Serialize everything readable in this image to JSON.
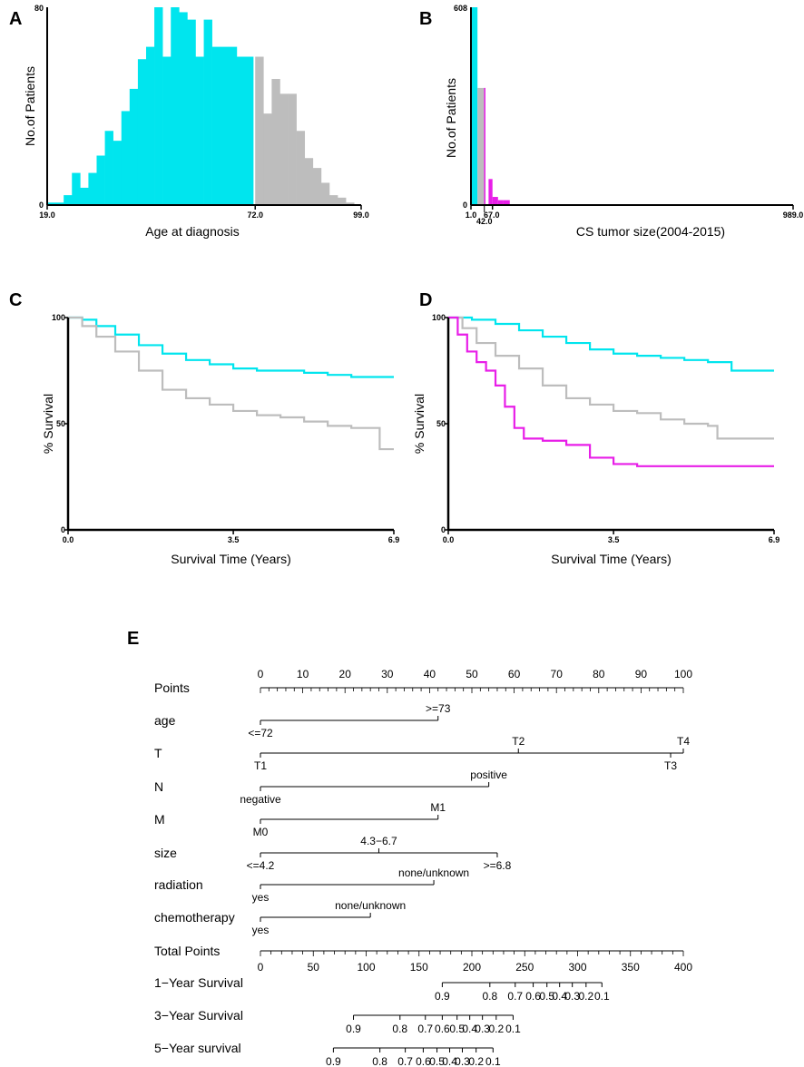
{
  "colors": {
    "cyan": "#00e5ee",
    "gray": "#bdbdbd",
    "magenta": "#e81ee8",
    "axis": "#000000"
  },
  "chart_data": [
    {
      "panel": "A",
      "type": "bar",
      "title": "",
      "xlabel": "Age at diagnosis",
      "ylabel": "No.of Patients",
      "xlim": [
        19,
        99
      ],
      "ylim": [
        0,
        80
      ],
      "x_ticks": [
        "19.0",
        "72.0",
        "99.0"
      ],
      "y_ticks": [
        "0",
        "80"
      ],
      "bin_width": 2.1,
      "bins": [
        {
          "start": 19.0,
          "value": 1,
          "group": "cyan"
        },
        {
          "start": 21.1,
          "value": 1,
          "group": "cyan"
        },
        {
          "start": 23.2,
          "value": 4,
          "group": "cyan"
        },
        {
          "start": 25.3,
          "value": 13,
          "group": "cyan"
        },
        {
          "start": 27.4,
          "value": 7,
          "group": "cyan"
        },
        {
          "start": 29.5,
          "value": 13,
          "group": "cyan"
        },
        {
          "start": 31.6,
          "value": 20,
          "group": "cyan"
        },
        {
          "start": 33.7,
          "value": 30,
          "group": "cyan"
        },
        {
          "start": 35.8,
          "value": 26,
          "group": "cyan"
        },
        {
          "start": 37.9,
          "value": 38,
          "group": "cyan"
        },
        {
          "start": 40.0,
          "value": 47,
          "group": "cyan"
        },
        {
          "start": 42.1,
          "value": 59,
          "group": "cyan"
        },
        {
          "start": 44.2,
          "value": 64,
          "group": "cyan"
        },
        {
          "start": 46.3,
          "value": 80,
          "group": "cyan"
        },
        {
          "start": 48.4,
          "value": 60,
          "group": "cyan"
        },
        {
          "start": 50.5,
          "value": 80,
          "group": "cyan"
        },
        {
          "start": 52.6,
          "value": 78,
          "group": "cyan"
        },
        {
          "start": 54.7,
          "value": 75,
          "group": "cyan"
        },
        {
          "start": 56.8,
          "value": 60,
          "group": "cyan"
        },
        {
          "start": 58.9,
          "value": 75,
          "group": "cyan"
        },
        {
          "start": 61.0,
          "value": 64,
          "group": "cyan"
        },
        {
          "start": 63.1,
          "value": 64,
          "group": "cyan"
        },
        {
          "start": 65.2,
          "value": 64,
          "group": "cyan"
        },
        {
          "start": 67.3,
          "value": 60,
          "group": "cyan"
        },
        {
          "start": 69.4,
          "value": 60,
          "group": "cyan"
        },
        {
          "start": 72.0,
          "value": 60,
          "group": "gray"
        },
        {
          "start": 74.1,
          "value": 37,
          "group": "gray"
        },
        {
          "start": 76.2,
          "value": 51,
          "group": "gray"
        },
        {
          "start": 78.3,
          "value": 45,
          "group": "gray"
        },
        {
          "start": 80.4,
          "value": 45,
          "group": "gray"
        },
        {
          "start": 82.5,
          "value": 30,
          "group": "gray"
        },
        {
          "start": 84.6,
          "value": 19,
          "group": "gray"
        },
        {
          "start": 86.7,
          "value": 15,
          "group": "gray"
        },
        {
          "start": 88.8,
          "value": 9,
          "group": "gray"
        },
        {
          "start": 90.9,
          "value": 4,
          "group": "gray"
        },
        {
          "start": 93.0,
          "value": 3,
          "group": "gray"
        },
        {
          "start": 95.1,
          "value": 1,
          "group": "gray"
        },
        {
          "start": 97.2,
          "value": 0,
          "group": "gray"
        }
      ]
    },
    {
      "panel": "B",
      "type": "bar",
      "title": "",
      "xlabel": "CS tumor size(2004-2015)",
      "ylabel": "No.of Patients",
      "xlim": [
        1,
        989
      ],
      "ylim": [
        0,
        608
      ],
      "x_ticks": [
        "1.0",
        "67.0",
        "989.0"
      ],
      "x_tick_below": "42.0",
      "y_ticks": [
        "0",
        "608"
      ],
      "bars": [
        {
          "start": 1,
          "end": 21,
          "value": 608,
          "group": "cyan"
        },
        {
          "start": 21,
          "end": 42,
          "value": 360,
          "group": "gray"
        },
        {
          "start": 42,
          "end": 55,
          "value": 360,
          "group": "magenta"
        },
        {
          "start": 55,
          "end": 67,
          "value": 80,
          "group": "magenta"
        },
        {
          "start": 67,
          "end": 84,
          "value": 25,
          "group": "magenta"
        },
        {
          "start": 84,
          "end": 100,
          "value": 15,
          "group": "magenta"
        },
        {
          "start": 100,
          "end": 120,
          "value": 15,
          "group": "magenta"
        }
      ]
    },
    {
      "panel": "C",
      "type": "line",
      "title": "",
      "xlabel": "Survival Time (Years)",
      "ylabel": "% Survival",
      "xlim": [
        0,
        6.9
      ],
      "ylim": [
        0,
        100
      ],
      "x_ticks": [
        "0.0",
        "3.5",
        "6.9"
      ],
      "y_ticks": [
        "0",
        "50",
        "100"
      ],
      "series": [
        {
          "name": "cyan",
          "color": "cyan",
          "x": [
            0,
            0.3,
            0.6,
            1.0,
            1.5,
            2.0,
            2.5,
            3.0,
            3.5,
            4.0,
            4.5,
            5.0,
            5.5,
            6.0,
            6.9
          ],
          "y": [
            100,
            99,
            96,
            92,
            87,
            83,
            80,
            78,
            76,
            75,
            75,
            74,
            73,
            72,
            72
          ]
        },
        {
          "name": "gray",
          "color": "gray",
          "x": [
            0,
            0.3,
            0.6,
            1.0,
            1.5,
            2.0,
            2.5,
            3.0,
            3.5,
            4.0,
            4.5,
            5.0,
            5.5,
            6.0,
            6.6,
            6.6,
            6.9
          ],
          "y": [
            100,
            96,
            91,
            84,
            75,
            66,
            62,
            59,
            56,
            54,
            53,
            51,
            49,
            48,
            47,
            38,
            38
          ]
        }
      ]
    },
    {
      "panel": "D",
      "type": "line",
      "title": "",
      "xlabel": "Survival Time (Years)",
      "ylabel": "% Survival",
      "xlim": [
        0,
        6.9
      ],
      "ylim": [
        0,
        100
      ],
      "x_ticks": [
        "0.0",
        "3.5",
        "6.9"
      ],
      "y_ticks": [
        "0",
        "50",
        "100"
      ],
      "series": [
        {
          "name": "cyan",
          "color": "cyan",
          "x": [
            0,
            0.5,
            1.0,
            1.5,
            2.0,
            2.5,
            3.0,
            3.5,
            4.0,
            4.5,
            5.0,
            5.5,
            6.0,
            6.0,
            6.9
          ],
          "y": [
            100,
            99,
            97,
            94,
            91,
            88,
            85,
            83,
            82,
            81,
            80,
            79,
            78,
            75,
            75
          ]
        },
        {
          "name": "gray",
          "color": "gray",
          "x": [
            0,
            0.3,
            0.6,
            1.0,
            1.5,
            2.0,
            2.5,
            3.0,
            3.5,
            4.0,
            4.5,
            5.0,
            5.5,
            5.7,
            6.9
          ],
          "y": [
            100,
            95,
            88,
            82,
            76,
            68,
            62,
            59,
            56,
            55,
            52,
            50,
            49,
            43,
            43
          ]
        },
        {
          "name": "magenta",
          "color": "magenta",
          "x": [
            0,
            0.2,
            0.4,
            0.6,
            0.8,
            1.0,
            1.2,
            1.4,
            1.6,
            2.0,
            2.5,
            3.0,
            3.5,
            4.0,
            5.0,
            6.9
          ],
          "y": [
            100,
            92,
            84,
            79,
            75,
            68,
            58,
            48,
            43,
            42,
            40,
            34,
            31,
            30,
            30,
            30
          ]
        }
      ]
    },
    {
      "panel": "E",
      "type": "nomogram",
      "points_range": [
        0,
        100
      ],
      "points_ticks": [
        "0",
        "10",
        "20",
        "30",
        "40",
        "50",
        "60",
        "70",
        "80",
        "90",
        "100"
      ],
      "total_points_range": [
        0,
        400
      ],
      "total_points_ticks": [
        "0",
        "50",
        "100",
        "150",
        "200",
        "250",
        "300",
        "350",
        "400"
      ],
      "variables": [
        {
          "label": "age",
          "range": [
            0,
            42
          ],
          "levels": [
            {
              "text": "<=72",
              "points": 0,
              "pos": "below"
            },
            {
              "text": ">=73",
              "points": 42,
              "pos": "above"
            }
          ]
        },
        {
          "label": "T",
          "range": [
            0,
            100
          ],
          "levels": [
            {
              "text": "T1",
              "points": 0,
              "pos": "below"
            },
            {
              "text": "T2",
              "points": 61,
              "pos": "above"
            },
            {
              "text": "T3",
              "points": 97,
              "pos": "below"
            },
            {
              "text": "T4",
              "points": 100,
              "pos": "above"
            }
          ]
        },
        {
          "label": "N",
          "range": [
            0,
            54
          ],
          "levels": [
            {
              "text": "negative",
              "points": 0,
              "pos": "below"
            },
            {
              "text": "positive",
              "points": 54,
              "pos": "above"
            }
          ]
        },
        {
          "label": "M",
          "range": [
            0,
            42
          ],
          "levels": [
            {
              "text": "M0",
              "points": 0,
              "pos": "below"
            },
            {
              "text": "M1",
              "points": 42,
              "pos": "above"
            }
          ]
        },
        {
          "label": "size",
          "range": [
            0,
            56
          ],
          "levels": [
            {
              "text": "<=4.2",
              "points": 0,
              "pos": "below"
            },
            {
              "text": "4.3−6.7",
              "points": 28,
              "pos": "above"
            },
            {
              "text": ">=6.8",
              "points": 56,
              "pos": "below"
            }
          ]
        },
        {
          "label": "radiation",
          "range": [
            0,
            41
          ],
          "levels": [
            {
              "text": "yes",
              "points": 0,
              "pos": "below"
            },
            {
              "text": "none/unknown",
              "points": 41,
              "pos": "above"
            }
          ]
        },
        {
          "label": "chemotherapy",
          "range": [
            0,
            26
          ],
          "levels": [
            {
              "text": "yes",
              "points": 0,
              "pos": "below"
            },
            {
              "text": "none/unknown",
              "points": 26,
              "pos": "above"
            }
          ]
        }
      ],
      "survival_scales": [
        {
          "label": "1−Year Survival",
          "ticks": [
            {
              "text": "0.9",
              "tp": 172
            },
            {
              "text": "0.8",
              "tp": 217
            },
            {
              "text": "0.7",
              "tp": 241
            },
            {
              "text": "0.6",
              "tp": 258
            },
            {
              "text": "0.5",
              "tp": 271
            },
            {
              "text": "0.4",
              "tp": 283
            },
            {
              "text": "0.3",
              "tp": 295
            },
            {
              "text": "0.2",
              "tp": 308
            },
            {
              "text": "0.1",
              "tp": 323
            }
          ]
        },
        {
          "label": "3−Year Survival",
          "ticks": [
            {
              "text": "0.9",
              "tp": 88
            },
            {
              "text": "0.8",
              "tp": 132
            },
            {
              "text": "0.7",
              "tp": 156
            },
            {
              "text": "0.6",
              "tp": 172
            },
            {
              "text": "0.5",
              "tp": 186
            },
            {
              "text": "0.4",
              "tp": 198
            },
            {
              "text": "0.3",
              "tp": 210
            },
            {
              "text": "0.2",
              "tp": 223
            },
            {
              "text": "0.1",
              "tp": 239
            }
          ]
        },
        {
          "label": "5−Year survival",
          "ticks": [
            {
              "text": "0.9",
              "tp": 69
            },
            {
              "text": "0.8",
              "tp": 113
            },
            {
              "text": "0.7",
              "tp": 137
            },
            {
              "text": "0.6",
              "tp": 154
            },
            {
              "text": "0.5",
              "tp": 167
            },
            {
              "text": "0.4",
              "tp": 179
            },
            {
              "text": "0.3",
              "tp": 191
            },
            {
              "text": "0.2",
              "tp": 204
            },
            {
              "text": "0.1",
              "tp": 220
            }
          ]
        }
      ],
      "row_labels": {
        "points": "Points",
        "total": "Total Points"
      }
    }
  ],
  "panel_letters": [
    "A",
    "B",
    "C",
    "D",
    "E"
  ]
}
